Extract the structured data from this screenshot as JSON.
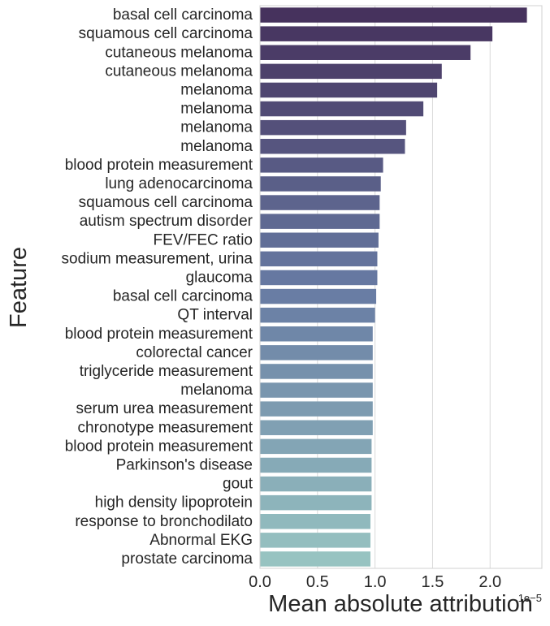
{
  "chart_data": {
    "type": "bar",
    "orientation": "horizontal",
    "categories": [
      "basal cell carcinoma",
      "squamous cell carcinoma",
      "cutaneous melanoma",
      "cutaneous melanoma",
      "melanoma",
      "melanoma",
      "melanoma",
      "melanoma",
      "blood protein measurement",
      "lung adenocarcinoma",
      "squamous cell carcinoma",
      "autism spectrum disorder",
      "FEV/FEC ratio",
      "sodium measurement, urina",
      "glaucoma",
      "basal cell carcinoma",
      "QT interval",
      "blood protein measurement",
      "colorectal cancer",
      "triglyceride measurement",
      "melanoma",
      "serum urea measurement",
      "chronotype measurement",
      "blood protein measurement",
      "Parkinson's disease",
      "gout",
      "high density lipoprotein ",
      "response to bronchodilato",
      "Abnormal EKG",
      "prostate carcinoma"
    ],
    "values": [
      2.32,
      2.02,
      1.83,
      1.58,
      1.54,
      1.42,
      1.27,
      1.26,
      1.07,
      1.05,
      1.04,
      1.04,
      1.03,
      1.02,
      1.02,
      1.01,
      1.0,
      0.98,
      0.98,
      0.98,
      0.98,
      0.98,
      0.98,
      0.97,
      0.97,
      0.97,
      0.97,
      0.96,
      0.96,
      0.96
    ],
    "value_scale": "1e-5",
    "xlabel": "Mean absolute attribution",
    "ylabel": "Feature",
    "xlim": [
      0,
      2.45
    ],
    "xticks": [
      "0.0",
      "0.5",
      "1.0",
      "1.5",
      "2.0"
    ],
    "xtick_values": [
      0,
      0.5,
      1.0,
      1.5,
      2.0
    ],
    "offset_label": "1e−5",
    "grid": "vertical",
    "palette": {
      "start": "#46325d",
      "mid": "#677aa3",
      "end": "#97c3c1"
    }
  }
}
